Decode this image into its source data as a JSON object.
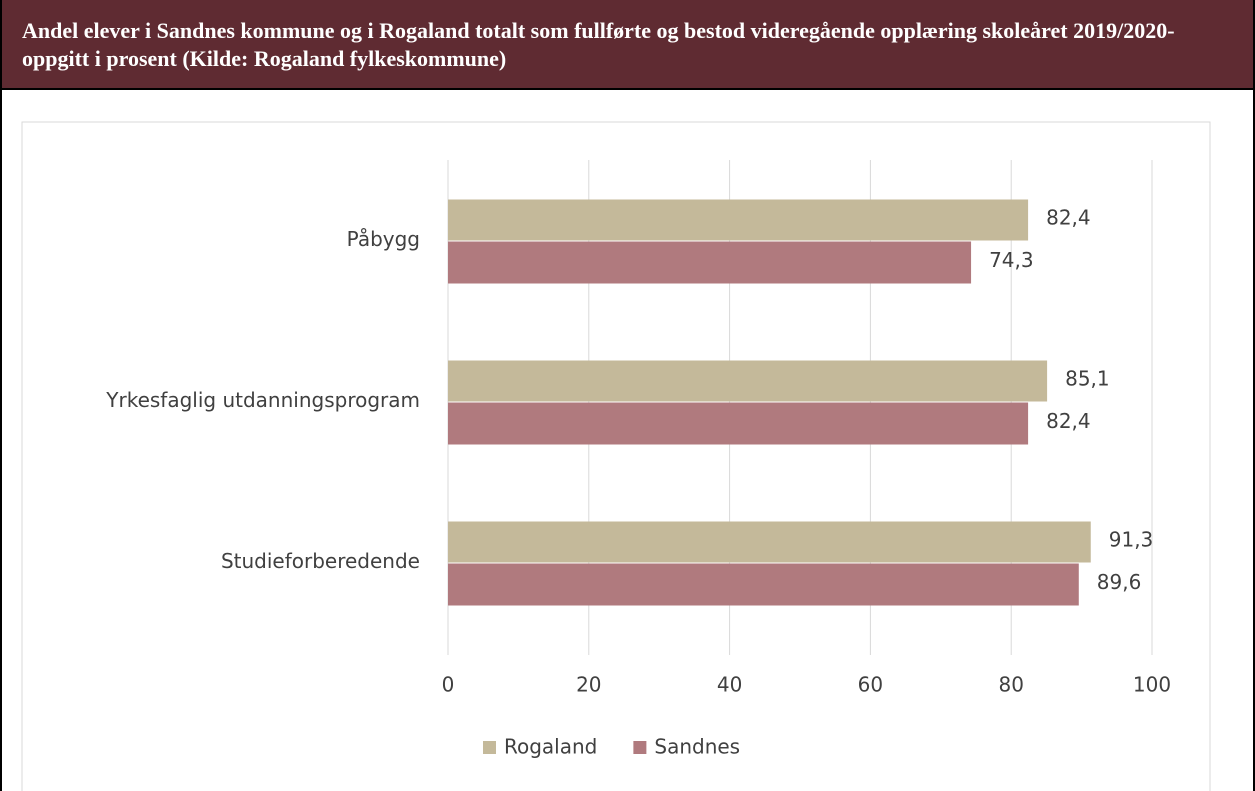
{
  "chart_data": {
    "type": "bar",
    "orientation": "horizontal",
    "title": "Andel elever i Sandnes kommune og i Rogaland totalt som fullførte og bestod videregående opplæring skoleåret 2019/2020- oppgitt i prosent (Kilde: Rogaland fylkeskommune)",
    "categories": [
      "Påbygg",
      "Yrkesfaglig utdanningsprogram",
      "Studieforberedende"
    ],
    "series": [
      {
        "name": "Rogaland",
        "color": "#c4b99a",
        "values": [
          82.4,
          85.1,
          91.3
        ],
        "value_labels": [
          "82,4",
          "85,1",
          "91,3"
        ]
      },
      {
        "name": "Sandnes",
        "color": "#b07a7e",
        "values": [
          74.3,
          82.4,
          89.6
        ],
        "value_labels": [
          "74,3",
          "82,4",
          "89,6"
        ]
      }
    ],
    "xlim": [
      0,
      100
    ],
    "xticks": [
      0,
      20,
      40,
      60,
      80,
      100
    ],
    "grid": true,
    "legend": "bottom"
  }
}
